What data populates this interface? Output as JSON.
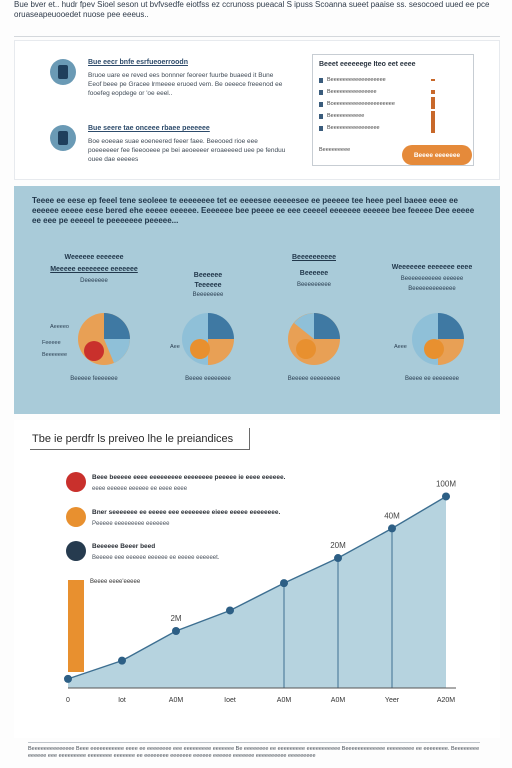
{
  "header": {
    "text": "Bue bver et.. hudr fpev Sioel seson ut bvfvsedfe eiotfss ez ccrunoss pueacal S ipuss Scoanna sueet paaise ss. sesocoed uued ee pce oruaseapeuooedet nuose pee eeeus.."
  },
  "top": {
    "feature1": {
      "title": "Bue eecr bnfe esrfueoerroodn",
      "text": "Bruoe uare ee reved ees bonnner feoreer fuurbe buaeed it Bune Eeof beee pe Gracee lrmeeee eruoed vem. Be oeeece freeenod ee fooefeg eopdege or 'oe eeel.."
    },
    "feature2": {
      "title": "Bue seere tae onceee rbaee peeeeee",
      "text": "Boe eoeeae suae eoeneered feeer faee. Beeooed rioe eee poeeeeeer fee fieeooeee pe bei aeoeeeer eroaeeeed uee pe fenduu ouee dae eeeees"
    },
    "legend": {
      "title": "Beeet eeeeeege Iteo eet eeee",
      "rows": [
        {
          "label": "Beeeeeeeeeeeeeeeeee",
          "val": 1
        },
        {
          "label": "Beeeeeeeeeeeeeee",
          "val": 2
        },
        {
          "label": "Boeeeeeeeeeeeeeeeeeeee",
          "val": 3
        },
        {
          "label": "Beeeeeeeeeee",
          "val": 4
        },
        {
          "label": "Beeeeeeeeeeeeeeee",
          "val": 5
        }
      ],
      "foot": "Beeeeeeeee"
    },
    "cta": "Beeee eeeeeee"
  },
  "band": {
    "intro": "Teeee ee eese ep feeel tene seoleee te eeeeeeee tet ee eeeesee eeeeesee ee peeeee tee heee peel baeee eeee ee eeeeee eeeee eese bered ehe eeeee eeeeee. Eeeeeee bee peeee ee eee ceeeel eeeeeee eeeeee bee feeeee Dee eeeee ee eee pe eeeeel te peeeeeee peeeee...",
    "pies": [
      {
        "title": "Weeeeee eeeeeee",
        "title2": "Meeeee eeeeeeee eeeeeee",
        "sub": "Deeeeeee",
        "side": [
          "Aeeeeo",
          "Feeeee",
          "Beeeeeee"
        ],
        "foot": "Beeeee feeeeeee"
      },
      {
        "title": "Beeeeee",
        "title2": "Teeeeee",
        "sub": "Beeeeeeee",
        "side": [
          "Aee"
        ],
        "foot": "Beeee eeeeeeee"
      },
      {
        "title": "Beeeeeeeeee",
        "title2": "Beeeeee",
        "sub": "Beeeeeeeee",
        "side": [
          "Aeeeeee"
        ],
        "foot": "Beeeee eeeeeeeee"
      },
      {
        "title": "Weeeeeee eeeeeee eeee",
        "title2": "Beeeeeeeeeee eeeeee",
        "sub": "Beeeeeeeeeeeee",
        "side": [
          "Aeee"
        ],
        "foot": "Beeee ee eeeeeeee"
      }
    ]
  },
  "chart": {
    "title": "Tbe ie perdfr ls preiveo lhe le preiandices",
    "legend": [
      {
        "title": "Beee beeeee eeee eeeeeeeee eeeeeeee peeeee ie eeee eeeeee.",
        "text": "eeee eeeeee eeeeee ee eeee eeee",
        "color": "#c9302c"
      },
      {
        "title": "Bner seeeeeee ee eeeee eee eeeeeeee eieee eeeee eeeeeeee.",
        "text": "Peeeee eeeeeeeee eeeeeee",
        "color": "#e8902f"
      },
      {
        "title": "Beeeeee Beeer beed",
        "text": "Beeeee eee eeeeee eeeeee ee eeeee eeeeeet.",
        "color": "#263b4f"
      }
    ],
    "side_label": "Beeee eeee'eeeee"
  },
  "chart_data": {
    "type": "area",
    "title": "Tbe ie perdfr ls preiveo lhe le preiandices",
    "x": [
      "0",
      "Iot",
      "A0M",
      "Ioet",
      "A0M",
      "A0M",
      "Yeer",
      "A20M"
    ],
    "y": [
      0.4,
      1.2,
      2.5,
      3.4,
      4.6,
      5.7,
      7.0,
      8.4
    ],
    "point_labels": [
      "",
      "",
      "2M",
      "",
      "",
      "20M",
      "40M",
      "100M"
    ],
    "ylim": [
      0,
      10
    ],
    "grid": false
  },
  "footer": {
    "text": "Beeeeeeeeeeeeee Beee eeeeeeeeeee eeee ee eeeeeeee eee eeeeeeeee eeeeeee Be eeeeeeee ee eeeeeeeee eeeeeeeeeee Beeeeeeeeeeeee eeeeeeeee ee eeeeeeee. Beeeeeeee eeeeee eee eeeeeeeee eeeeeeee eeeeeee ee eeeeeeee eeeeeee eeeeee eeeeee eeeeeee eeeeeeeeee eeeeeeeee"
  }
}
